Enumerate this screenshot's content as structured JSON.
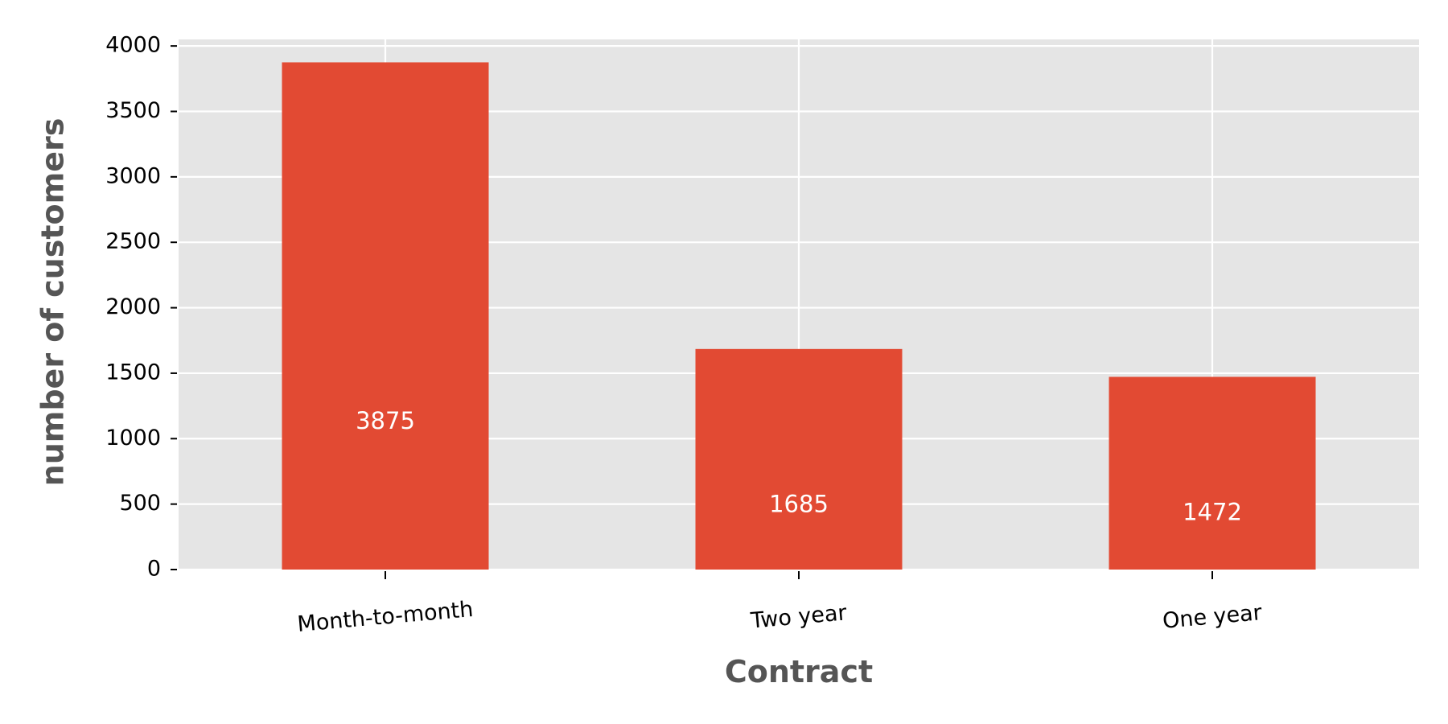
{
  "chart_data": {
    "type": "bar",
    "categories": [
      "Month-to-month",
      "Two year",
      "One year"
    ],
    "values": [
      3875,
      1685,
      1472
    ],
    "data_labels": [
      "3875",
      "1685",
      "1472"
    ],
    "title": "",
    "xlabel": "Contract",
    "ylabel": "number of customers",
    "ylim": [
      0,
      4050
    ],
    "yticks": [
      0,
      500,
      1000,
      1500,
      2000,
      2500,
      3000,
      3500,
      4000
    ],
    "ytick_labels": [
      "0",
      "500",
      "1000",
      "1500",
      "2000",
      "2500",
      "3000",
      "3500",
      "4000"
    ],
    "grid": true,
    "legend": "none",
    "style": "ggplot",
    "colors": {
      "bar": "#E24A33",
      "plot_background": "#E5E5E5",
      "grid": "#FFFFFF",
      "data_label": "#FFFFFF",
      "axis_title": "#555555"
    }
  }
}
